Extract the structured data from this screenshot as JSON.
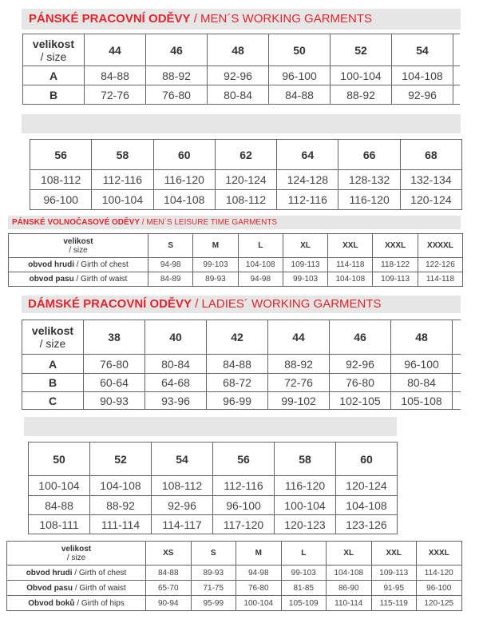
{
  "sections": [
    {
      "title_bold": "PÁNSKÉ PRACOVNÍ ODĚVY",
      "title_rest": " / MEN´S WORKING GARMENTS",
      "table": {
        "label_bold": "velikost",
        "label_rest": "/ size",
        "sizes": [
          "44",
          "46",
          "48",
          "50",
          "52",
          "54"
        ],
        "rows": [
          {
            "label": "A",
            "values": [
              "84-88",
              "88-92",
              "92-96",
              "96-100",
              "100-104",
              "104-108"
            ]
          },
          {
            "label": "B",
            "values": [
              "72-76",
              "76-80",
              "80-84",
              "84-88",
              "88-92",
              "92-96"
            ]
          }
        ]
      }
    },
    {
      "title_bold": "",
      "title_rest": "",
      "table": {
        "sizes": [
          "56",
          "58",
          "60",
          "62",
          "64",
          "66",
          "68"
        ],
        "rows": [
          {
            "values": [
              "108-112",
              "112-116",
              "116-120",
              "120-124",
              "124-128",
              "128-132",
              "132-134"
            ]
          },
          {
            "values": [
              "96-100",
              "100-104",
              "104-108",
              "108-112",
              "112-116",
              "116-120",
              "120-124"
            ]
          }
        ]
      }
    },
    {
      "title_bold": "PÁNSKÉ VOLNOČASOVÉ ODĚVY",
      "title_rest": " / MEN´S LEISURE TIME GARMENTS",
      "table": {
        "label_bold": "velikost",
        "label_rest": "/ size",
        "sizes": [
          "S",
          "M",
          "L",
          "XL",
          "XXL",
          "XXXL",
          "XXXXL"
        ],
        "rows": [
          {
            "label_bold": "obvod hrudi ",
            "label_rest": " / Girth of chest",
            "values": [
              "94-98",
              "99-103",
              "104-108",
              "109-113",
              "114-118",
              "118-122",
              "122-126"
            ]
          },
          {
            "label_bold": "obvod pasu",
            "label_rest": " / Girth of waist",
            "values": [
              "84-89",
              "89-93",
              "94-98",
              "99-103",
              "104-108",
              "109-113",
              "114-118"
            ]
          }
        ]
      }
    },
    {
      "title_bold": "DÁMSKÉ PRACOVNÍ ODĚVY",
      "title_rest": " / LADIES´ WORKING GARMENTS",
      "table": {
        "label_bold": "velikost",
        "label_rest": "/ size",
        "sizes": [
          "38",
          "40",
          "42",
          "44",
          "46",
          "48"
        ],
        "rows": [
          {
            "label": "A",
            "values": [
              "76-80",
              "80-84",
              "84-88",
              "88-92",
              "92-96",
              "96-100"
            ]
          },
          {
            "label": "B",
            "values": [
              "60-64",
              "64-68",
              "68-72",
              "72-76",
              "76-80",
              "80-84"
            ]
          },
          {
            "label": "C",
            "values": [
              "90-93",
              "93-96",
              "96-99",
              "99-102",
              "102-105",
              "105-108"
            ]
          }
        ]
      }
    },
    {
      "title_bold": "",
      "title_rest": "",
      "table": {
        "sizes": [
          "50",
          "52",
          "54",
          "56",
          "58",
          "60"
        ],
        "rows": [
          {
            "values": [
              "100-104",
              "104-108",
              "108-112",
              "112-116",
              "116-120",
              "120-124"
            ]
          },
          {
            "values": [
              "84-88",
              "88-92",
              "92-96",
              "96-100",
              "100-104",
              "104-108"
            ]
          },
          {
            "values": [
              "108-111",
              "111-114",
              "114-117",
              "117-120",
              "120-123",
              "123-126"
            ]
          }
        ]
      }
    },
    {
      "table": {
        "label_bold": "velikost",
        "label_rest": "/ size",
        "sizes": [
          "XS",
          "S",
          "M",
          "L",
          "XL",
          "XXL",
          "XXXL"
        ],
        "rows": [
          {
            "label_bold": "obvod hrudi",
            "label_rest": " / Girth of chest",
            "values": [
              "84-88",
              "89-93",
              "94-98",
              "99-103",
              "104-108",
              "109-113",
              "114-120"
            ]
          },
          {
            "label_bold": "Obvod pasu",
            "label_rest": " / Girth of waist",
            "values": [
              "65-70",
              "71-75",
              "76-80",
              "81-85",
              "86-90",
              "91-95",
              "96-100"
            ]
          },
          {
            "label_bold": "Obvod boků",
            "label_rest": " / Girth of hips",
            "values": [
              "90-94",
              "95-99",
              "100-104",
              "105-109",
              "110-114",
              "115-119",
              "120-125"
            ]
          }
        ]
      }
    }
  ],
  "colors": {
    "title_red": "#e3242b",
    "bar_gray": "#e6e6e6",
    "border": "#666666"
  }
}
